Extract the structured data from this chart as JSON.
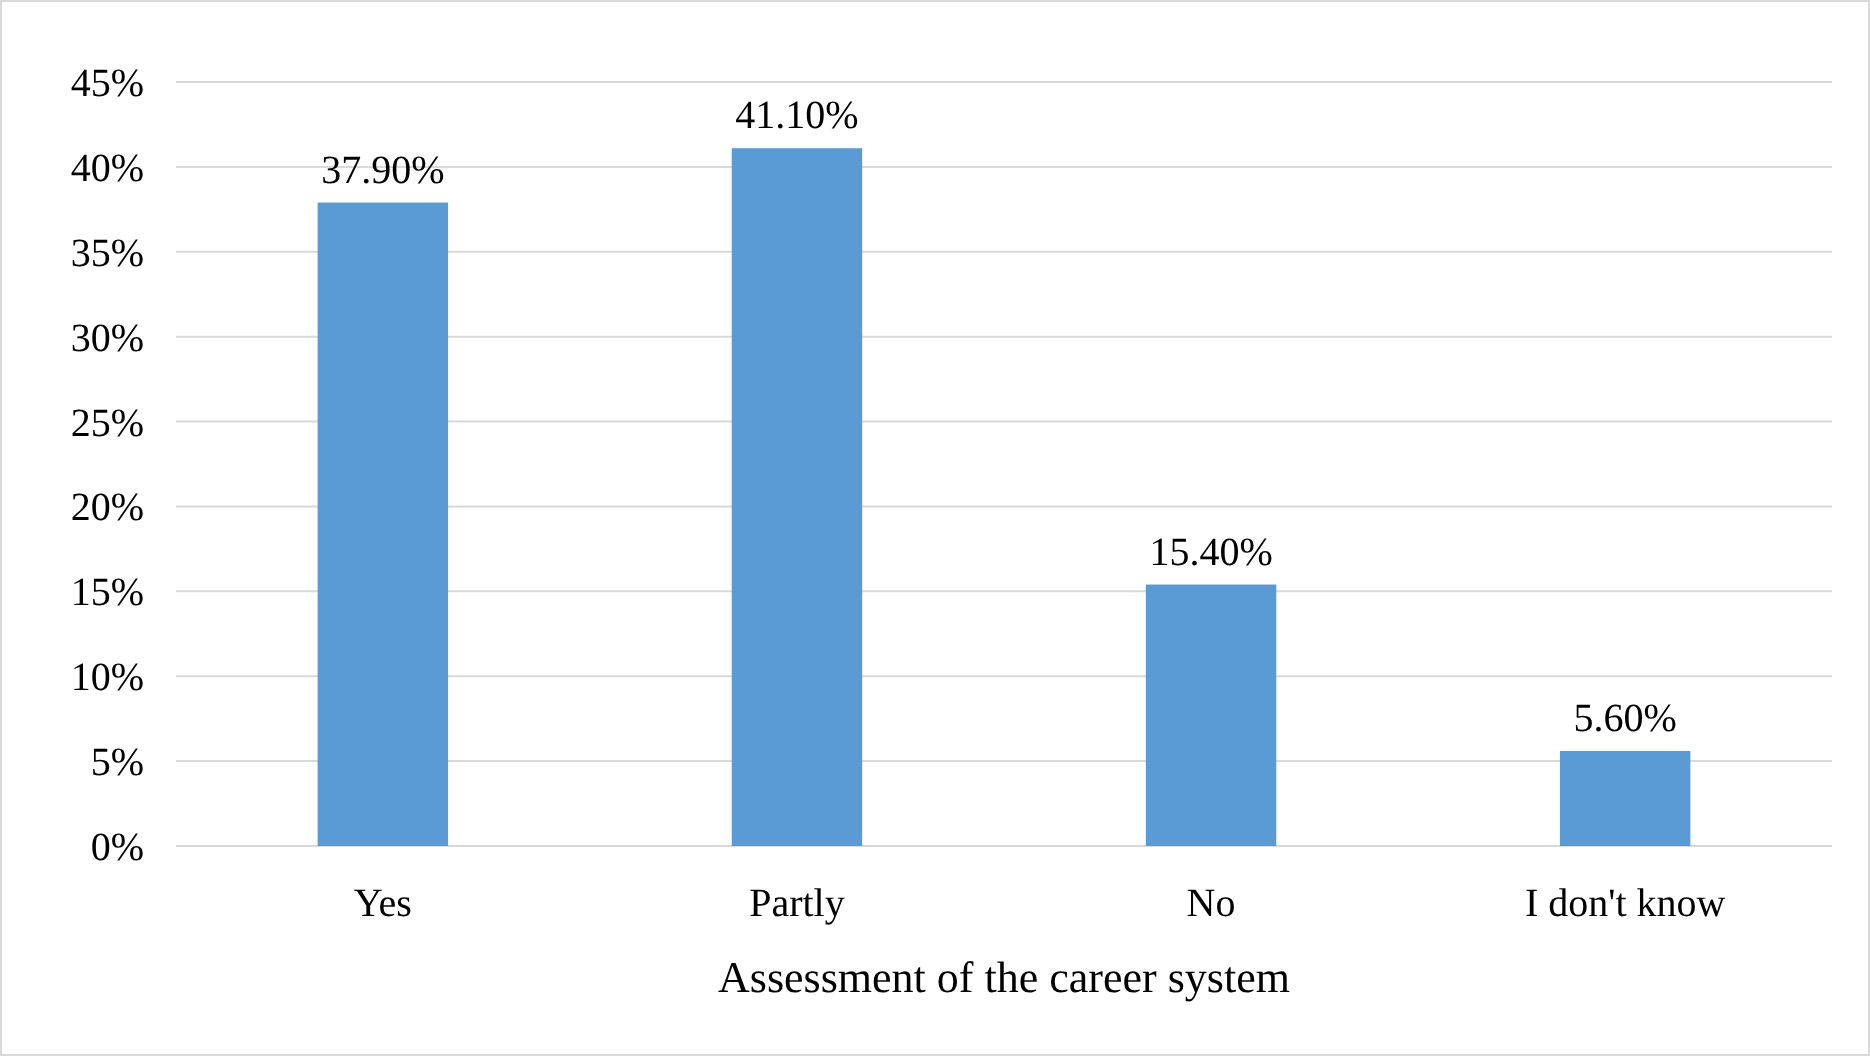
{
  "chart_data": {
    "type": "bar",
    "xlabel": "Assessment of the career system",
    "categories": [
      "Yes",
      "Partly",
      "No",
      "I don't know"
    ],
    "values": [
      37.9,
      41.1,
      15.4,
      5.6
    ],
    "value_labels": [
      "37.90%",
      "41.10%",
      "15.40%",
      "5.60%"
    ],
    "color": "#5b9bd5",
    "ylim": [
      0,
      45
    ],
    "yticks": [
      {
        "value": 0,
        "label": "0%"
      },
      {
        "value": 5,
        "label": "5%"
      },
      {
        "value": 10,
        "label": "10%"
      },
      {
        "value": 15,
        "label": "15%"
      },
      {
        "value": 20,
        "label": "20%"
      },
      {
        "value": 25,
        "label": "25%"
      },
      {
        "value": 30,
        "label": "30%"
      },
      {
        "value": 35,
        "label": "35%"
      },
      {
        "value": 40,
        "label": "40%"
      },
      {
        "value": 45,
        "label": "45%"
      }
    ],
    "grid": "y"
  }
}
